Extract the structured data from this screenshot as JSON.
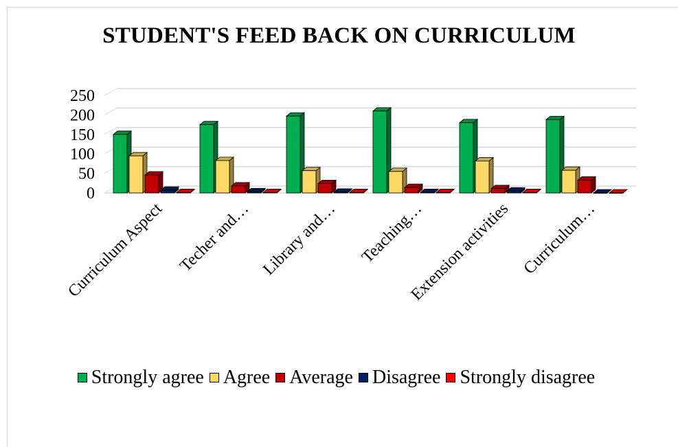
{
  "chart_data": {
    "type": "bar",
    "variant": "3d-clustered-column",
    "title": "STUDENT'S FEED BACK ON CURRICULUM",
    "xlabel": "",
    "ylabel": "",
    "ylim": [
      0,
      250
    ],
    "y_ticks": [
      "0",
      "50",
      "100",
      "150",
      "200",
      "250"
    ],
    "grid": true,
    "legend_position": "bottom",
    "categories": [
      "Curriculum Aspect",
      "Techer and…",
      "Library and…",
      "Teaching…",
      "Extension activities",
      "Curriculum…"
    ],
    "series": [
      {
        "name": "Strongly agree",
        "color": "#00b050",
        "values": [
          150,
          175,
          197,
          210,
          180,
          188
        ]
      },
      {
        "name": "Agree",
        "color": "#ffd966",
        "values": [
          95,
          83,
          57,
          55,
          82,
          58
        ]
      },
      {
        "name": "Average",
        "color": "#c00000",
        "values": [
          46,
          18,
          24,
          14,
          11,
          33
        ]
      },
      {
        "name": "Disagree",
        "color": "#002060",
        "values": [
          7,
          3,
          2,
          1,
          5,
          0
        ]
      },
      {
        "name": "Strongly disagree",
        "color": "#ff0000",
        "values": [
          1,
          1,
          1,
          1,
          1,
          0
        ]
      }
    ]
  }
}
